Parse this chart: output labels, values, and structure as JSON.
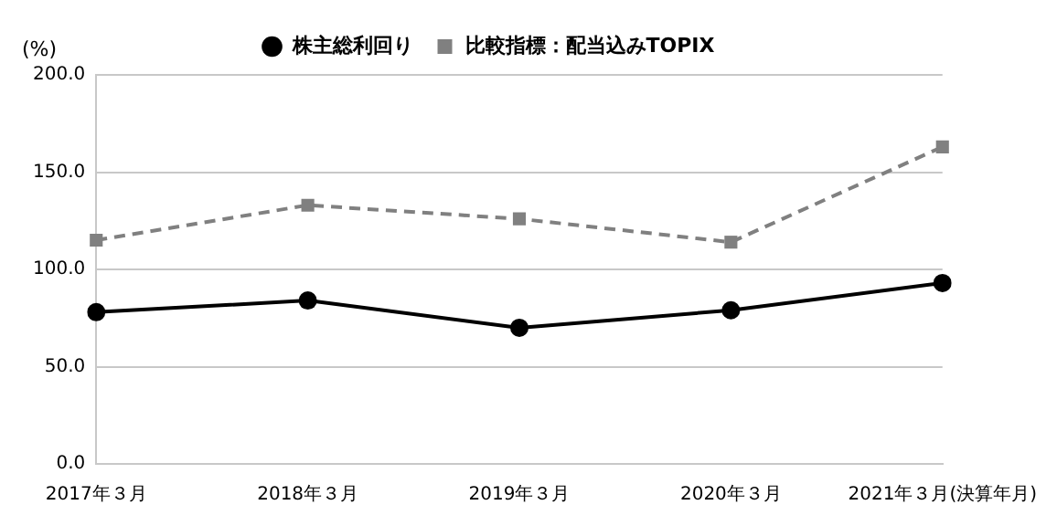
{
  "chart_data": {
    "type": "line",
    "ylabel": "(%)",
    "categories": [
      "2017年３月",
      "2018年３月",
      "2019年３月",
      "2020年３月",
      "2021年３月(決算年月)"
    ],
    "series": [
      {
        "name": "株主総利回り",
        "color": "#000000",
        "marker": "circle",
        "line_style": "solid",
        "values": [
          78,
          84,
          70,
          79,
          93
        ]
      },
      {
        "name": "比較指標：配当込みTOPIX",
        "color": "#808080",
        "marker": "square",
        "line_style": "dashed",
        "values": [
          115,
          133,
          126,
          114,
          163
        ]
      }
    ],
    "ylim": [
      0,
      200
    ],
    "yticks": [
      {
        "value": 0,
        "label": "0.0"
      },
      {
        "value": 50,
        "label": "50.0"
      },
      {
        "value": 100,
        "label": "100.0"
      },
      {
        "value": 150,
        "label": "150.0"
      },
      {
        "value": 200,
        "label": "200.0"
      }
    ],
    "grid": "y",
    "legend": "top"
  }
}
